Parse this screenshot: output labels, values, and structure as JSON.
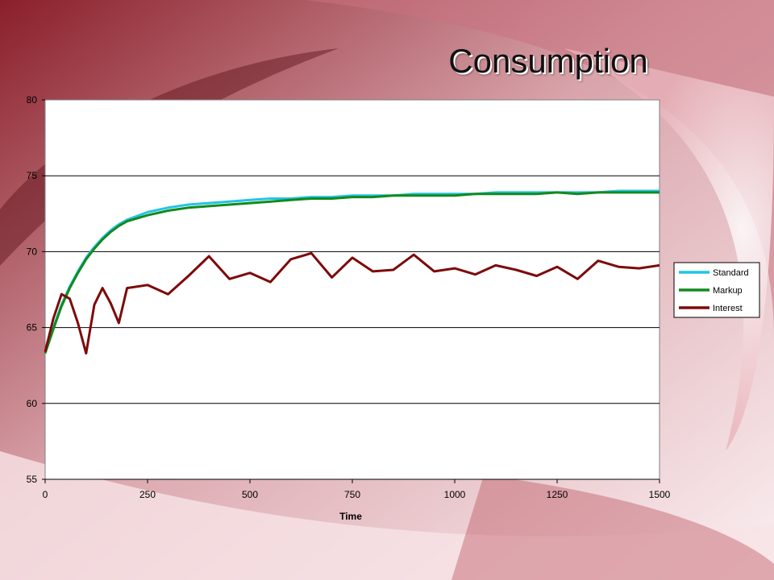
{
  "slide": {
    "title": "Consumption"
  },
  "colors": {
    "Standard": "#22c4e6",
    "Markup": "#128a1d",
    "Interest": "#7d0a0a"
  },
  "chart_data": {
    "type": "line",
    "title": "",
    "xlabel": "Time",
    "ylabel": "",
    "xlim": [
      0,
      1500
    ],
    "ylim": [
      55,
      80
    ],
    "x_ticks": [
      "0",
      "250",
      "500",
      "750",
      "1000",
      "1250",
      "1500"
    ],
    "y_ticks": [
      "80",
      "75",
      "70",
      "65",
      "60",
      "55"
    ],
    "grid": true,
    "legend_position": "right",
    "x": [
      0,
      20,
      40,
      60,
      80,
      100,
      120,
      140,
      160,
      180,
      200,
      250,
      300,
      350,
      400,
      450,
      500,
      550,
      600,
      650,
      700,
      750,
      800,
      850,
      900,
      950,
      1000,
      1050,
      1100,
      1150,
      1200,
      1250,
      1300,
      1350,
      1400,
      1450,
      1500
    ],
    "series": [
      {
        "name": "Standard",
        "values": [
          63.3,
          65.0,
          66.5,
          67.7,
          68.7,
          69.6,
          70.3,
          70.9,
          71.4,
          71.8,
          72.1,
          72.6,
          72.9,
          73.1,
          73.2,
          73.3,
          73.4,
          73.5,
          73.5,
          73.6,
          73.6,
          73.7,
          73.7,
          73.7,
          73.8,
          73.8,
          73.8,
          73.8,
          73.9,
          73.9,
          73.9,
          73.9,
          73.9,
          73.9,
          74.0,
          74.0,
          74.0
        ]
      },
      {
        "name": "Markup",
        "values": [
          63.3,
          64.9,
          66.4,
          67.6,
          68.6,
          69.5,
          70.2,
          70.8,
          71.3,
          71.7,
          72.0,
          72.4,
          72.7,
          72.9,
          73.0,
          73.1,
          73.2,
          73.3,
          73.4,
          73.5,
          73.5,
          73.6,
          73.6,
          73.7,
          73.7,
          73.7,
          73.7,
          73.8,
          73.8,
          73.8,
          73.8,
          73.9,
          73.8,
          73.9,
          73.9,
          73.9,
          73.9
        ]
      },
      {
        "name": "Interest",
        "values": [
          63.4,
          65.6,
          67.2,
          66.9,
          65.3,
          63.3,
          66.5,
          67.6,
          66.6,
          65.3,
          67.6,
          67.8,
          67.2,
          68.4,
          69.7,
          68.2,
          68.6,
          68.0,
          69.5,
          69.9,
          68.3,
          69.6,
          68.7,
          68.8,
          69.8,
          68.7,
          68.9,
          68.5,
          69.1,
          68.8,
          68.4,
          69.0,
          68.2,
          69.4,
          69.0,
          68.9,
          69.1
        ]
      }
    ]
  }
}
